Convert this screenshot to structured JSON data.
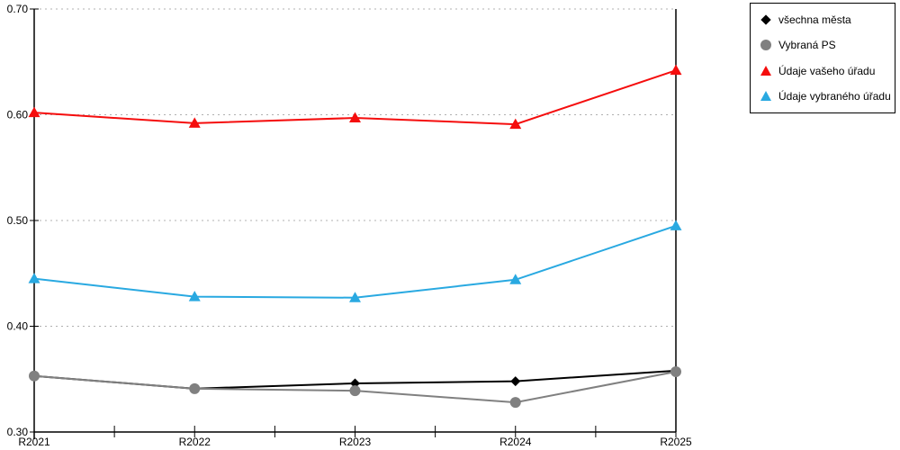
{
  "chart_data": {
    "type": "line",
    "title": "",
    "xlabel": "",
    "ylabel": "",
    "categories": [
      "R2021",
      "R2022",
      "R2023",
      "R2024",
      "R2025"
    ],
    "series": [
      {
        "name": "všechna města",
        "color": "#000000",
        "marker": "diamond",
        "values": [
          0.353,
          0.341,
          0.346,
          0.348,
          0.358
        ]
      },
      {
        "name": "Vybraná PS",
        "color": "#808080",
        "marker": "circle",
        "values": [
          0.353,
          0.341,
          0.339,
          0.328,
          0.357
        ]
      },
      {
        "name": "Údaje vašeho úřadu",
        "color": "#f50d0d",
        "marker": "triangle",
        "values": [
          0.602,
          0.592,
          0.597,
          0.591,
          0.642
        ]
      },
      {
        "name": "Údaje vybraného úřadu",
        "color": "#29a9e1",
        "marker": "triangle",
        "values": [
          0.445,
          0.428,
          0.427,
          0.444,
          0.495
        ]
      }
    ],
    "ylim": [
      0.3,
      0.7
    ],
    "y_ticks": [
      0.3,
      0.4,
      0.5,
      0.6,
      0.7
    ],
    "y_tick_labels": [
      "0.30",
      "0.40",
      "0.50",
      "0.60",
      "0.70"
    ],
    "grid": "horizontal dotted",
    "gridline_color": "#b0b0b0",
    "axis_color": "#000000",
    "legend_position": "top-right"
  }
}
